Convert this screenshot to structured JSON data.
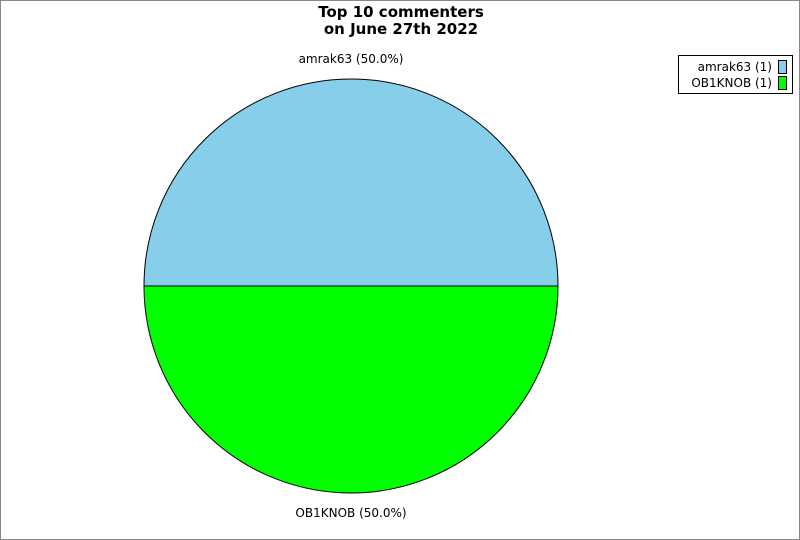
{
  "chart_data": {
    "type": "pie",
    "title": "Top 10 commenters\non June 27th 2022",
    "title_lines": [
      "Top 10 commenters",
      "on June 27th 2022"
    ],
    "slices": [
      {
        "label": "amrak63",
        "value": 1,
        "percent_label": "amrak63 (50.0%)",
        "legend_label": "amrak63 (1)",
        "color": "#87ceeb"
      },
      {
        "label": "OB1KNOB",
        "value": 1,
        "percent_label": "OB1KNOB (50.0%)",
        "legend_label": "OB1KNOB (1)",
        "color": "#00ff00"
      }
    ],
    "legend_placement": "top-right",
    "start_angle_deg": 180,
    "direction": "clockwise"
  }
}
